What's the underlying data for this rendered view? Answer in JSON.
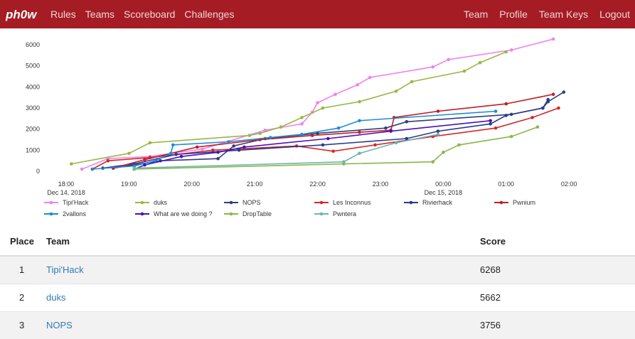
{
  "navbar": {
    "brand": "ph0wn",
    "left_links": [
      "Rules",
      "Teams",
      "Scoreboard",
      "Challenges"
    ],
    "right_links": [
      "Team",
      "Profile",
      "Team Keys",
      "Logout"
    ],
    "bg_color": "#a51c24"
  },
  "chart_data": {
    "type": "line",
    "x_ticks": [
      "18:00",
      "19:00",
      "20:00",
      "21:00",
      "22:00",
      "23:00",
      "00:00",
      "01:00",
      "02:00"
    ],
    "x_date_labels": [
      {
        "at": "18:00",
        "text": "Dec 14, 2018"
      },
      {
        "at": "00:00",
        "text": "Dec 15, 2018"
      }
    ],
    "y_ticks": [
      0,
      1000,
      2000,
      3000,
      4000,
      5000,
      6000
    ],
    "ylim": [
      0,
      6000
    ],
    "grid": false,
    "legend_position": "bottom",
    "series": [
      {
        "name": "Tipi'Hack",
        "color": "#ee82ee",
        "points": [
          [
            "18:15",
            100
          ],
          [
            "18:40",
            600
          ],
          [
            "19:20",
            700
          ],
          [
            "20:10",
            1050
          ],
          [
            "21:10",
            1950
          ],
          [
            "21:45",
            2250
          ],
          [
            "21:55",
            2800
          ],
          [
            "22:00",
            3250
          ],
          [
            "22:17",
            3650
          ],
          [
            "22:38",
            4100
          ],
          [
            "22:50",
            4450
          ],
          [
            "23:50",
            4950
          ],
          [
            "24:05",
            5300
          ],
          [
            "25:05",
            5750
          ],
          [
            "25:45",
            6268
          ]
        ]
      },
      {
        "name": "duks",
        "color": "#9ab743",
        "points": [
          [
            "18:05",
            350
          ],
          [
            "19:00",
            850
          ],
          [
            "19:20",
            1350
          ],
          [
            "20:55",
            1700
          ],
          [
            "21:05",
            1800
          ],
          [
            "21:25",
            2100
          ],
          [
            "21:45",
            2550
          ],
          [
            "22:05",
            3000
          ],
          [
            "22:40",
            3300
          ],
          [
            "23:15",
            3800
          ],
          [
            "23:30",
            4250
          ],
          [
            "24:20",
            4750
          ],
          [
            "24:35",
            5150
          ],
          [
            "25:00",
            5662
          ]
        ]
      },
      {
        "name": "NOPS",
        "color": "#2f3f7b",
        "points": [
          [
            "18:45",
            150
          ],
          [
            "19:30",
            500
          ],
          [
            "20:25",
            600
          ],
          [
            "20:40",
            1200
          ],
          [
            "21:10",
            1550
          ],
          [
            "22:00",
            1800
          ],
          [
            "23:05",
            2050
          ],
          [
            "23:25",
            2350
          ],
          [
            "25:05",
            2700
          ],
          [
            "25:35",
            3000
          ],
          [
            "25:40",
            3300
          ],
          [
            "25:55",
            3756
          ]
        ]
      },
      {
        "name": "Les Inconnus",
        "color": "#d62728",
        "points": [
          [
            "18:25",
            100
          ],
          [
            "18:40",
            500
          ],
          [
            "19:20",
            650
          ],
          [
            "20:20",
            1000
          ],
          [
            "21:40",
            1200
          ],
          [
            "22:15",
            950
          ],
          [
            "22:55",
            1250
          ],
          [
            "23:50",
            1650
          ],
          [
            "24:50",
            2050
          ],
          [
            "25:25",
            2550
          ],
          [
            "25:50",
            3000
          ]
        ]
      },
      {
        "name": "Rivierhack",
        "color": "#2a3a8c",
        "points": [
          [
            "18:35",
            150
          ],
          [
            "19:05",
            350
          ],
          [
            "19:45",
            800
          ],
          [
            "20:45",
            1000
          ],
          [
            "22:05",
            1250
          ],
          [
            "23:25",
            1550
          ],
          [
            "23:55",
            1900
          ],
          [
            "24:45",
            2250
          ],
          [
            "25:00",
            2650
          ],
          [
            "25:35",
            3000
          ],
          [
            "25:40",
            3400
          ]
        ]
      },
      {
        "name": "Pwnium",
        "color": "#c41e24",
        "points": [
          [
            "18:45",
            150
          ],
          [
            "19:15",
            550
          ],
          [
            "20:05",
            1150
          ],
          [
            "21:05",
            1500
          ],
          [
            "21:55",
            1700
          ],
          [
            "22:40",
            1850
          ],
          [
            "23:10",
            1950
          ],
          [
            "23:13",
            2550
          ],
          [
            "23:55",
            2850
          ],
          [
            "25:00",
            3200
          ],
          [
            "25:45",
            3650
          ]
        ]
      },
      {
        "name": "2vallons",
        "color": "#1f8ad6",
        "points": [
          [
            "18:25",
            100
          ],
          [
            "19:05",
            250
          ],
          [
            "19:25",
            500
          ],
          [
            "19:40",
            850
          ],
          [
            "19:42",
            1250
          ],
          [
            "20:35",
            1400
          ],
          [
            "21:15",
            1600
          ],
          [
            "21:45",
            1750
          ],
          [
            "22:20",
            2050
          ],
          [
            "22:40",
            2400
          ],
          [
            "24:50",
            2850
          ]
        ]
      },
      {
        "name": "What are we doing ?",
        "color": "#4b0fc0",
        "points": [
          [
            "19:05",
            100
          ],
          [
            "19:15",
            300
          ],
          [
            "19:50",
            700
          ],
          [
            "20:25",
            900
          ],
          [
            "20:50",
            1150
          ],
          [
            "22:10",
            1550
          ],
          [
            "23:10",
            1900
          ],
          [
            "24:45",
            2400
          ]
        ]
      },
      {
        "name": "DropTable",
        "color": "#88b84a",
        "points": [
          [
            "19:05",
            100
          ],
          [
            "22:25",
            350
          ],
          [
            "23:50",
            450
          ],
          [
            "24:00",
            900
          ],
          [
            "24:15",
            1250
          ],
          [
            "25:05",
            1650
          ],
          [
            "25:30",
            2100
          ]
        ]
      },
      {
        "name": "Pwntera",
        "color": "#6bb5b0",
        "points": [
          [
            "19:05",
            150
          ],
          [
            "22:25",
            450
          ],
          [
            "22:40",
            850
          ],
          [
            "23:15",
            1350
          ],
          [
            "23:55",
            1750
          ]
        ]
      }
    ]
  },
  "table": {
    "headers": [
      "Place",
      "Team",
      "Score"
    ],
    "rows": [
      {
        "place": "1",
        "team": "Tipi'Hack",
        "score": "6268"
      },
      {
        "place": "2",
        "team": "duks",
        "score": "5662"
      },
      {
        "place": "3",
        "team": "NOPS",
        "score": "3756"
      }
    ]
  }
}
